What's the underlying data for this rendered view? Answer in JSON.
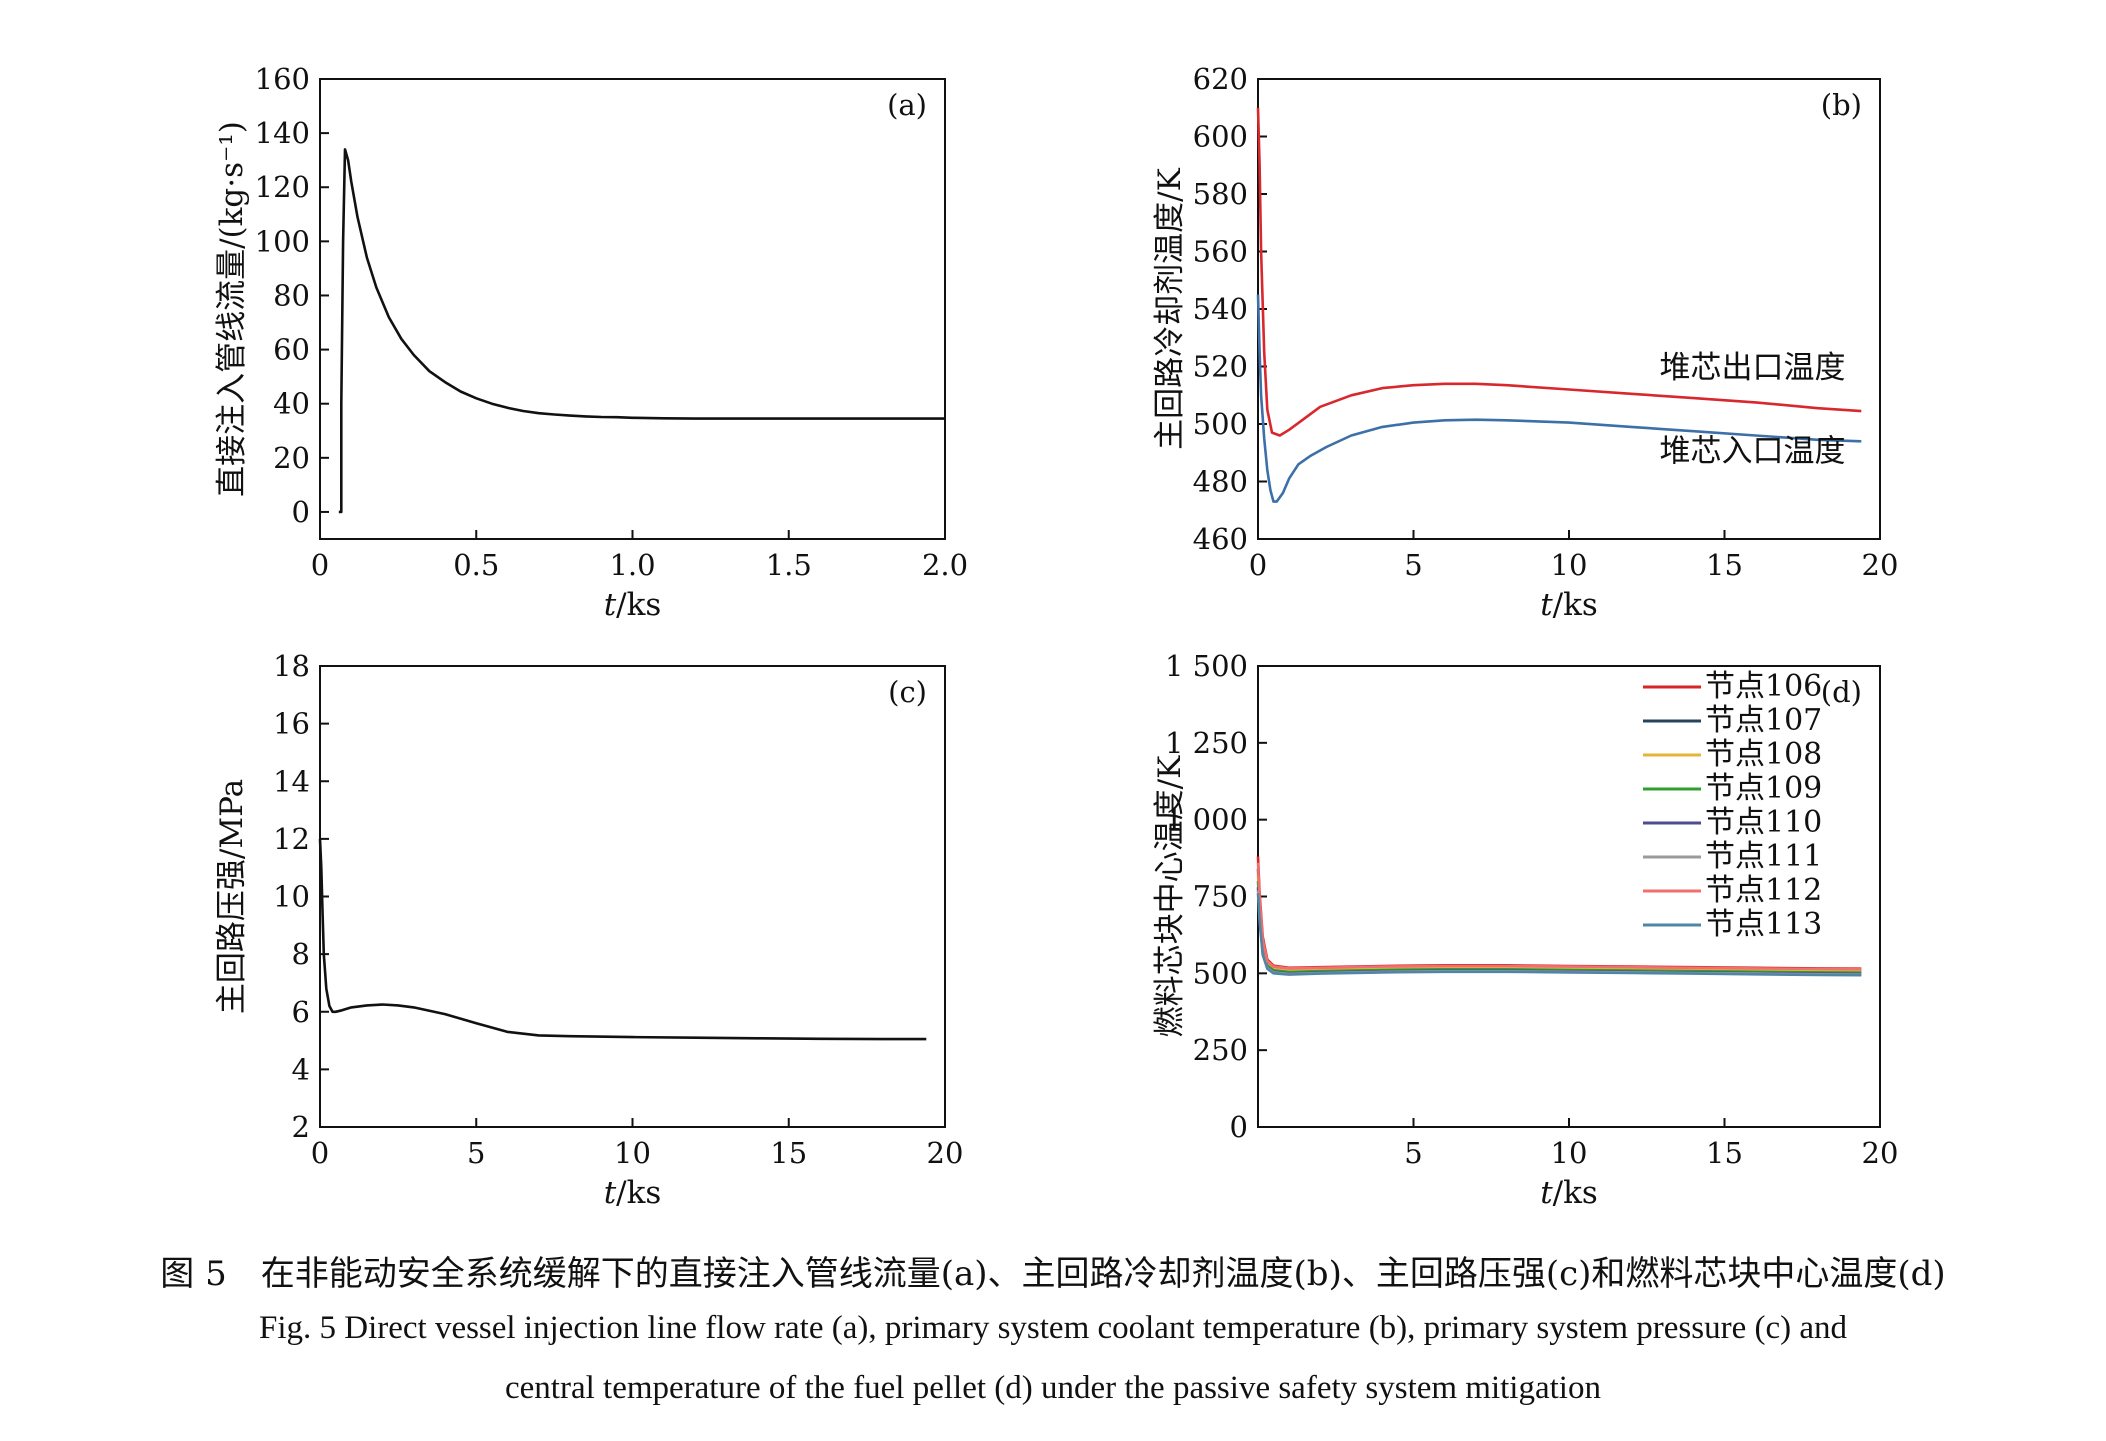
{
  "chart_data": [
    {
      "type": "line",
      "panel_label": "(a)",
      "ylabel": "直接注入管线流量/(kg·s⁻¹)",
      "xlabel_italic": "t",
      "xlabel_unit": "/ks",
      "xlim": [
        0,
        2.0
      ],
      "ylim": [
        -10,
        160
      ],
      "x_ticks": [
        0,
        0.5,
        1.0,
        1.5,
        2.0
      ],
      "x_tick_labels": [
        "0",
        "0.5",
        "1.0",
        "1.5",
        "2.0"
      ],
      "y_ticks": [
        0,
        20,
        40,
        60,
        80,
        100,
        120,
        140,
        160
      ],
      "y_tick_labels": [
        "0",
        "20",
        "40",
        "60",
        "80",
        "100",
        "120",
        "140",
        "160"
      ],
      "series": [
        {
          "color": "#111111",
          "x": [
            0.06,
            0.068,
            0.068,
            0.074,
            0.08,
            0.09,
            0.1,
            0.12,
            0.15,
            0.18,
            0.22,
            0.26,
            0.3,
            0.35,
            0.4,
            0.45,
            0.5,
            0.55,
            0.6,
            0.65,
            0.7,
            0.75,
            0.8,
            0.85,
            0.9,
            0.95,
            1.0,
            1.1,
            1.2,
            1.4,
            1.6,
            1.8,
            2.0
          ],
          "y": [
            0,
            0,
            40,
            100,
            134,
            130,
            122,
            109,
            94,
            83,
            72,
            64,
            58,
            52,
            48,
            44.5,
            42,
            40,
            38.5,
            37.3,
            36.5,
            36,
            35.6,
            35.3,
            35.1,
            35,
            34.8,
            34.6,
            34.5,
            34.5,
            34.5,
            34.5,
            34.5
          ]
        }
      ]
    },
    {
      "type": "line",
      "panel_label": "(b)",
      "ylabel": "主回路冷却剂温度/K",
      "xlabel_italic": "t",
      "xlabel_unit": "/ks",
      "xlim": [
        0,
        20
      ],
      "ylim": [
        460,
        620
      ],
      "x_ticks": [
        0,
        5,
        10,
        15,
        20
      ],
      "x_tick_labels": [
        "0",
        "5",
        "10",
        "15",
        "20"
      ],
      "y_ticks": [
        460,
        480,
        500,
        520,
        540,
        560,
        580,
        600,
        620
      ],
      "y_tick_labels": [
        "460",
        "480",
        "500",
        "520",
        "540",
        "560",
        "580",
        "600",
        "620"
      ],
      "series": [
        {
          "name": "堆芯出口温度",
          "color": "#d9272e",
          "x": [
            0,
            0.05,
            0.1,
            0.2,
            0.3,
            0.45,
            0.7,
            1.0,
            1.5,
            2.0,
            3.0,
            4.0,
            5.0,
            6.0,
            7.0,
            8.0,
            10.0,
            12.0,
            14.0,
            16.0,
            18.0,
            19.4
          ],
          "y": [
            610,
            590,
            560,
            525,
            505,
            497,
            496,
            498,
            502,
            506,
            510,
            512.5,
            513.5,
            514,
            514,
            513.5,
            512,
            510.5,
            509,
            507.5,
            505.5,
            504.5
          ]
        },
        {
          "name": "堆芯入口温度",
          "color": "#3d6fa8",
          "x": [
            0,
            0.05,
            0.1,
            0.2,
            0.3,
            0.4,
            0.5,
            0.6,
            0.8,
            1.0,
            1.3,
            1.7,
            2.2,
            3.0,
            4.0,
            5.0,
            6.0,
            7.0,
            8.0,
            10.0,
            12.0,
            14.0,
            16.0,
            18.0,
            19.4
          ],
          "y": [
            545,
            525,
            510,
            495,
            484,
            477,
            473,
            473,
            476,
            481,
            486,
            489,
            492,
            496,
            499,
            500.5,
            501.3,
            501.5,
            501.3,
            500.5,
            499,
            497.5,
            496,
            494.5,
            494
          ]
        }
      ],
      "annotations": [
        {
          "text": "堆芯出口温度",
          "x": 15.9,
          "y": 516
        },
        {
          "text": "堆芯入口温度",
          "x": 15.9,
          "y": 487
        }
      ]
    },
    {
      "type": "line",
      "panel_label": "(c)",
      "ylabel": "主回路压强/MPa",
      "xlabel_italic": "t",
      "xlabel_unit": "/ks",
      "xlim": [
        0,
        20
      ],
      "ylim": [
        2,
        18
      ],
      "x_ticks": [
        0,
        5,
        10,
        15,
        20
      ],
      "x_tick_labels": [
        "0",
        "5",
        "10",
        "15",
        "20"
      ],
      "y_ticks": [
        2,
        4,
        6,
        8,
        10,
        12,
        14,
        16,
        18
      ],
      "y_tick_labels": [
        "2",
        "4",
        "6",
        "8",
        "10",
        "12",
        "14",
        "16",
        "18"
      ],
      "series": [
        {
          "color": "#111111",
          "x": [
            0,
            0.04,
            0.08,
            0.12,
            0.2,
            0.3,
            0.4,
            0.5,
            0.7,
            1.0,
            1.5,
            2.0,
            2.5,
            3.0,
            4.0,
            5.0,
            6.0,
            7.0,
            8.0,
            10.0,
            12.0,
            14.0,
            16.0,
            18.0,
            19.4
          ],
          "y": [
            12,
            11,
            9.5,
            8.0,
            6.8,
            6.2,
            6.0,
            6.0,
            6.05,
            6.15,
            6.22,
            6.25,
            6.22,
            6.15,
            5.92,
            5.6,
            5.3,
            5.18,
            5.15,
            5.12,
            5.1,
            5.08,
            5.06,
            5.05,
            5.05
          ]
        }
      ]
    },
    {
      "type": "line",
      "panel_label": "(d)",
      "ylabel": "燃料芯块中心温度/K",
      "xlabel_italic": "t",
      "xlabel_unit": "/ks",
      "xlim": [
        0,
        20
      ],
      "ylim": [
        0,
        1500
      ],
      "x_ticks": [
        5,
        10,
        15,
        20
      ],
      "x_tick_labels": [
        "5",
        "10",
        "15",
        "20"
      ],
      "y_ticks": [
        0,
        250,
        500,
        750,
        1000,
        1250,
        1500
      ],
      "y_tick_labels": [
        "0",
        "250",
        "500",
        "750",
        "1 000",
        "1 250",
        "1 500"
      ],
      "legend_position": "top-right",
      "series": [
        {
          "name": "节点106",
          "color": "#d62728",
          "x": [
            0,
            0.05,
            0.15,
            0.3,
            0.5,
            1.0,
            2.0,
            4.0,
            6.0,
            8.0,
            10.0,
            12.0,
            14.0,
            16.0,
            18.0,
            19.4
          ],
          "y": [
            880,
            760,
            620,
            545,
            525,
            518,
            520,
            524,
            526,
            526,
            524,
            522,
            520,
            518,
            516,
            515
          ]
        },
        {
          "name": "节点107",
          "color": "#23455d",
          "x": [
            0,
            0.05,
            0.15,
            0.3,
            0.5,
            1.0,
            2.0,
            4.0,
            6.0,
            8.0,
            10.0,
            12.0,
            14.0,
            16.0,
            18.0,
            19.4
          ],
          "y": [
            840,
            730,
            600,
            535,
            518,
            512,
            515,
            519,
            521,
            521,
            519,
            517,
            515,
            513,
            511,
            510
          ]
        },
        {
          "name": "节点108",
          "color": "#e5b53a",
          "x": [
            0,
            0.05,
            0.15,
            0.3,
            0.5,
            1.0,
            2.0,
            4.0,
            6.0,
            8.0,
            10.0,
            12.0,
            14.0,
            16.0,
            18.0,
            19.4
          ],
          "y": [
            820,
            715,
            590,
            530,
            514,
            508,
            511,
            515,
            517,
            517,
            515,
            513,
            511,
            509,
            507,
            506
          ]
        },
        {
          "name": "节点109",
          "color": "#2ca02c",
          "x": [
            0,
            0.05,
            0.15,
            0.3,
            0.5,
            1.0,
            2.0,
            4.0,
            6.0,
            8.0,
            10.0,
            12.0,
            14.0,
            16.0,
            18.0,
            19.4
          ],
          "y": [
            800,
            700,
            580,
            525,
            510,
            504,
            507,
            511,
            513,
            513,
            511,
            509,
            507,
            505,
            503,
            502
          ]
        },
        {
          "name": "节点110",
          "color": "#4b4d8e",
          "x": [
            0,
            0.05,
            0.15,
            0.3,
            0.5,
            1.0,
            2.0,
            4.0,
            6.0,
            8.0,
            10.0,
            12.0,
            14.0,
            16.0,
            18.0,
            19.4
          ],
          "y": [
            780,
            690,
            570,
            520,
            505,
            500,
            503,
            507,
            509,
            509,
            507,
            505,
            503,
            501,
            499,
            498
          ]
        },
        {
          "name": "节点111",
          "color": "#9a9a9a",
          "x": [
            0,
            0.05,
            0.15,
            0.3,
            0.5,
            1.0,
            2.0,
            4.0,
            6.0,
            8.0,
            10.0,
            12.0,
            14.0,
            16.0,
            18.0,
            19.4
          ],
          "y": [
            770,
            680,
            565,
            518,
            503,
            498,
            501,
            505,
            507,
            507,
            505,
            503,
            501,
            499,
            497,
            496
          ]
        },
        {
          "name": "节点112",
          "color": "#f07070",
          "x": [
            0,
            0.05,
            0.15,
            0.3,
            0.5,
            1.0,
            2.0,
            4.0,
            6.0,
            8.0,
            10.0,
            12.0,
            14.0,
            16.0,
            18.0,
            19.4
          ],
          "y": [
            860,
            745,
            610,
            540,
            522,
            516,
            518,
            522,
            524,
            524,
            522,
            520,
            518,
            516,
            514,
            513
          ]
        },
        {
          "name": "节点113",
          "color": "#4f86a6",
          "x": [
            0,
            0.05,
            0.15,
            0.3,
            0.5,
            1.0,
            2.0,
            4.0,
            6.0,
            8.0,
            10.0,
            12.0,
            14.0,
            16.0,
            18.0,
            19.4
          ],
          "y": [
            760,
            670,
            560,
            515,
            500,
            496,
            499,
            503,
            505,
            505,
            503,
            501,
            499,
            497,
            495,
            494
          ]
        }
      ]
    }
  ],
  "caption": {
    "cn": "图 5　在非能动安全系统缓解下的直接注入管线流量(a)、主回路冷却剂温度(b)、主回路压强(c)和燃料芯块中心温度(d)",
    "en_line1": "Fig. 5   Direct vessel injection line flow rate (a), primary system coolant temperature (b), primary system pressure (c) and",
    "en_line2": "central temperature of the fuel pellet (d) under the passive safety system mitigation"
  }
}
